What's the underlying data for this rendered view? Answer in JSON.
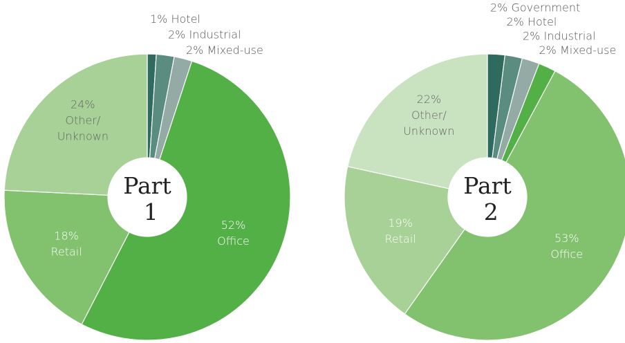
{
  "chart_data": [
    {
      "type": "donut",
      "title": "Part 1",
      "categories": [
        "Hotel",
        "Industrial",
        "Mixed-use",
        "Office",
        "Retail",
        "Other/Unknown"
      ],
      "values": [
        1,
        2,
        2,
        52,
        18,
        24
      ],
      "value_labels": [
        "1%",
        "2%",
        "2%",
        "52%",
        "18%",
        "24%"
      ],
      "colors": [
        "#2e6b5e",
        "#5a8c80",
        "#93aaa5",
        "#52b047",
        "#82c16e",
        "#a7d196"
      ]
    },
    {
      "type": "donut",
      "title": "Part 2",
      "categories": [
        "Government",
        "Hotel",
        "Industrial",
        "Mixed-use",
        "Office",
        "Retail",
        "Other/Unknown"
      ],
      "values": [
        2,
        2,
        2,
        2,
        53,
        19,
        22
      ],
      "value_labels": [
        "2%",
        "2%",
        "2%",
        "2%",
        "53%",
        "19%",
        "22%"
      ],
      "colors": [
        "#2e6b5e",
        "#5a8c80",
        "#93aaa5",
        "#52b047",
        "#82c16e",
        "#a7d196",
        "#c9e3c0"
      ]
    }
  ]
}
